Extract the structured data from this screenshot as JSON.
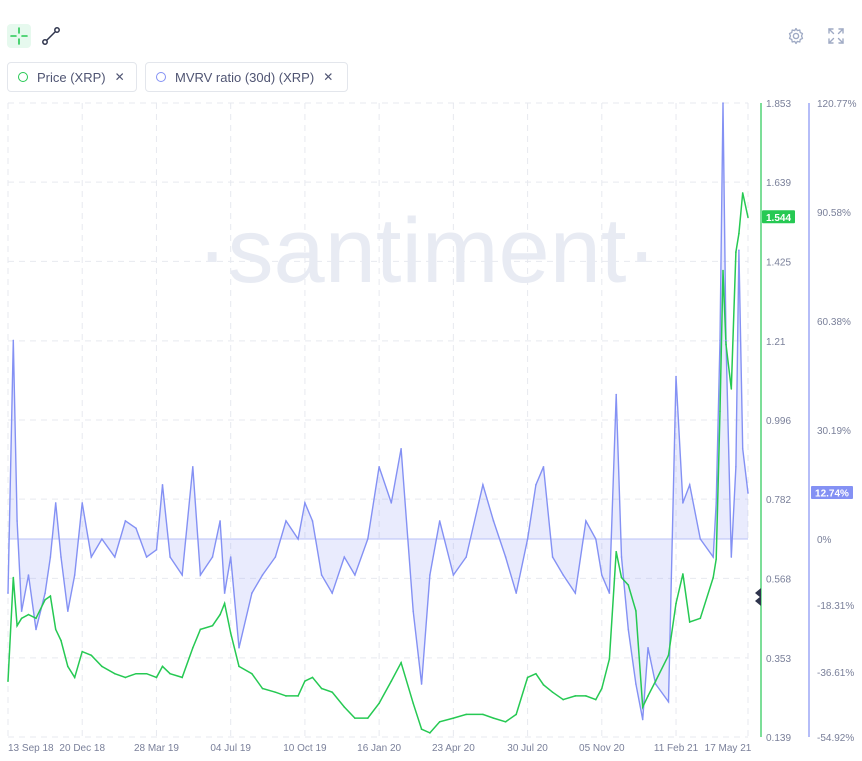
{
  "toolbar": {
    "tools": [
      {
        "name": "crosshair-tool",
        "active": true
      },
      {
        "name": "line-drawing-tool",
        "active": false
      }
    ],
    "right_icons": [
      "settings-icon",
      "fullscreen-icon"
    ]
  },
  "legend": [
    {
      "label": "Price (XRP)",
      "color": "#26c953"
    },
    {
      "label": "MVRV ratio (30d) (XRP)",
      "color": "#8491f4"
    }
  ],
  "watermark": "·santiment·",
  "chart_data": {
    "type": "line",
    "x_ticks": [
      "13 Sep 18",
      "20 Dec 18",
      "28 Mar 19",
      "04 Jul 19",
      "10 Oct 19",
      "16 Jan 20",
      "23 Apr 20",
      "30 Jul 20",
      "05 Nov 20",
      "11 Feb 21",
      "17 May 21"
    ],
    "y_price_ticks": [
      "1.853",
      "1.639",
      "1.425",
      "1.21",
      "0.996",
      "0.782",
      "0.568",
      "0.353",
      "0.139"
    ],
    "y_price_range": [
      0.139,
      1.853
    ],
    "y_mvrv_ticks": [
      "120.77%",
      "90.58%",
      "60.38%",
      "30.19%",
      "0%",
      "-18.31%",
      "-36.61%",
      "-54.92%"
    ],
    "current_price_label": "1.544",
    "current_mvrv_label": "12.74%",
    "series": [
      {
        "name": "Price (XRP)",
        "axis": "left",
        "color": "#26c953",
        "x": [
          "13 Sep 18",
          "20 Sep 18",
          "25 Sep 18",
          "01 Oct 18",
          "10 Oct 18",
          "20 Oct 18",
          "01 Nov 18",
          "08 Nov 18",
          "15 Nov 18",
          "22 Nov 18",
          "01 Dec 18",
          "10 Dec 18",
          "20 Dec 18",
          "01 Jan 19",
          "15 Jan 19",
          "01 Feb 19",
          "15 Feb 19",
          "01 Mar 19",
          "15 Mar 19",
          "28 Mar 19",
          "05 Apr 19",
          "15 Apr 19",
          "01 May 19",
          "15 May 19",
          "25 May 19",
          "10 Jun 19",
          "20 Jun 19",
          "26 Jun 19",
          "04 Jul 19",
          "15 Jul 19",
          "01 Aug 19",
          "15 Aug 19",
          "01 Sep 19",
          "15 Sep 19",
          "01 Oct 19",
          "10 Oct 19",
          "20 Oct 19",
          "01 Nov 19",
          "15 Nov 19",
          "01 Dec 19",
          "15 Dec 19",
          "01 Jan 20",
          "16 Jan 20",
          "01 Feb 20",
          "14 Feb 20",
          "01 Mar 20",
          "12 Mar 20",
          "23 Mar 20",
          "05 Apr 20",
          "23 Apr 20",
          "10 May 20",
          "01 Jun 20",
          "15 Jun 20",
          "01 Jul 20",
          "15 Jul 20",
          "30 Jul 20",
          "10 Aug 20",
          "20 Aug 20",
          "01 Sep 20",
          "15 Sep 20",
          "01 Oct 20",
          "15 Oct 20",
          "28 Oct 20",
          "05 Nov 20",
          "15 Nov 20",
          "24 Nov 20",
          "01 Dec 20",
          "10 Dec 20",
          "20 Dec 20",
          "29 Dec 20",
          "05 Jan 21",
          "15 Jan 21",
          "01 Feb 21",
          "11 Feb 21",
          "20 Feb 21",
          "01 Mar 21",
          "15 Mar 21",
          "01 Apr 21",
          "05 Apr 21",
          "10 Apr 21",
          "14 Apr 21",
          "18 Apr 21",
          "25 Apr 21",
          "01 May 21",
          "05 May 21",
          "10 May 21",
          "17 May 21"
        ],
        "values": [
          0.29,
          0.57,
          0.44,
          0.46,
          0.47,
          0.46,
          0.51,
          0.52,
          0.43,
          0.4,
          0.33,
          0.3,
          0.37,
          0.36,
          0.33,
          0.31,
          0.3,
          0.31,
          0.31,
          0.3,
          0.33,
          0.31,
          0.3,
          0.38,
          0.43,
          0.44,
          0.47,
          0.5,
          0.42,
          0.33,
          0.31,
          0.27,
          0.26,
          0.25,
          0.25,
          0.29,
          0.3,
          0.27,
          0.26,
          0.22,
          0.19,
          0.19,
          0.23,
          0.29,
          0.34,
          0.23,
          0.16,
          0.15,
          0.18,
          0.19,
          0.2,
          0.2,
          0.19,
          0.18,
          0.2,
          0.3,
          0.31,
          0.28,
          0.26,
          0.24,
          0.25,
          0.25,
          0.24,
          0.27,
          0.35,
          0.64,
          0.57,
          0.55,
          0.48,
          0.22,
          0.25,
          0.29,
          0.36,
          0.5,
          0.58,
          0.45,
          0.46,
          0.57,
          0.62,
          1.02,
          1.4,
          1.2,
          1.08,
          1.45,
          1.5,
          1.61,
          1.544
        ]
      },
      {
        "name": "MVRV ratio (30d) (XRP)",
        "axis": "right",
        "color": "#8491f4",
        "x": [
          "13 Sep 18",
          "20 Sep 18",
          "25 Sep 18",
          "01 Oct 18",
          "10 Oct 18",
          "20 Oct 18",
          "01 Nov 18",
          "08 Nov 18",
          "15 Nov 18",
          "22 Nov 18",
          "01 Dec 18",
          "10 Dec 18",
          "20 Dec 18",
          "01 Jan 19",
          "15 Jan 19",
          "01 Feb 19",
          "15 Feb 19",
          "01 Mar 19",
          "15 Mar 19",
          "28 Mar 19",
          "05 Apr 19",
          "15 Apr 19",
          "01 May 19",
          "15 May 19",
          "25 May 19",
          "10 Jun 19",
          "20 Jun 19",
          "26 Jun 19",
          "04 Jul 19",
          "15 Jul 19",
          "01 Aug 19",
          "15 Aug 19",
          "01 Sep 19",
          "15 Sep 19",
          "01 Oct 19",
          "10 Oct 19",
          "20 Oct 19",
          "01 Nov 19",
          "15 Nov 19",
          "01 Dec 19",
          "15 Dec 19",
          "01 Jan 20",
          "16 Jan 20",
          "01 Feb 20",
          "14 Feb 20",
          "01 Mar 20",
          "12 Mar 20",
          "23 Mar 20",
          "05 Apr 20",
          "23 Apr 20",
          "10 May 20",
          "01 Jun 20",
          "15 Jun 20",
          "01 Jul 20",
          "15 Jul 20",
          "30 Jul 20",
          "10 Aug 20",
          "20 Aug 20",
          "01 Sep 20",
          "15 Sep 20",
          "01 Oct 20",
          "15 Oct 20",
          "28 Oct 20",
          "05 Nov 20",
          "15 Nov 20",
          "24 Nov 20",
          "01 Dec 20",
          "10 Dec 20",
          "20 Dec 20",
          "29 Dec 20",
          "05 Jan 21",
          "15 Jan 21",
          "01 Feb 21",
          "11 Feb 21",
          "20 Feb 21",
          "01 Mar 21",
          "15 Mar 21",
          "01 Apr 21",
          "05 Apr 21",
          "10 Apr 21",
          "14 Apr 21",
          "18 Apr 21",
          "25 Apr 21",
          "01 May 21",
          "05 May 21",
          "10 May 21",
          "17 May 21"
        ],
        "values": [
          -15,
          55,
          5,
          -20,
          -10,
          -25,
          -15,
          -5,
          10,
          -5,
          -20,
          -10,
          10,
          -5,
          0,
          -5,
          5,
          3,
          -5,
          -3,
          15,
          -5,
          -10,
          20,
          -10,
          -5,
          5,
          -15,
          -5,
          -30,
          -15,
          -10,
          -5,
          5,
          0,
          10,
          5,
          -10,
          -15,
          -5,
          -10,
          0,
          20,
          10,
          25,
          -20,
          -40,
          -10,
          5,
          -10,
          -5,
          15,
          5,
          -5,
          -15,
          0,
          15,
          20,
          -5,
          -10,
          -15,
          5,
          0,
          -10,
          -15,
          40,
          -5,
          -25,
          -40,
          -50,
          -30,
          -40,
          -45,
          45,
          10,
          15,
          0,
          -5,
          10,
          55,
          121,
          55,
          -5,
          20,
          80,
          25,
          12.74
        ]
      }
    ],
    "legend_placement": "top-left",
    "grid": true
  }
}
